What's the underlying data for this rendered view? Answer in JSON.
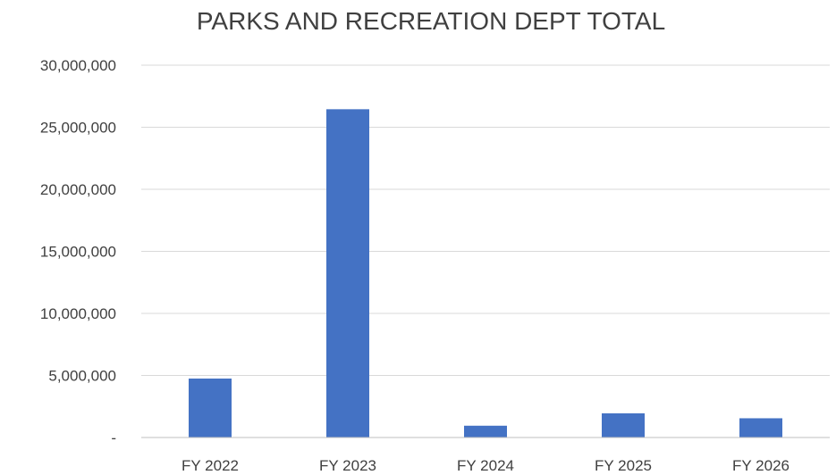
{
  "chart_data": {
    "type": "bar",
    "title": "PARKS AND RECREATION DEPT TOTAL",
    "categories": [
      "FY 2022",
      "FY 2023",
      "FY 2024",
      "FY 2025",
      "FY 2026"
    ],
    "values": [
      4750000,
      26450000,
      950000,
      1950000,
      1550000
    ],
    "ylim": [
      0,
      30000000
    ],
    "yticks": [
      0,
      5000000,
      10000000,
      15000000,
      20000000,
      25000000,
      30000000
    ],
    "ytick_labels": [
      "-",
      "5,000,000",
      "10,000,000",
      "15,000,000",
      "20,000,000",
      "25,000,000",
      "30,000,000"
    ],
    "bar_color": "#4472C4",
    "grid": true,
    "legend": "none"
  }
}
